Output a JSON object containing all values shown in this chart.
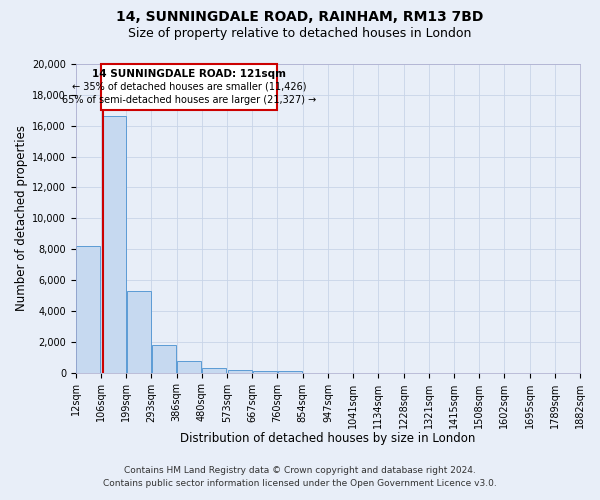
{
  "title": "14, SUNNINGDALE ROAD, RAINHAM, RM13 7BD",
  "subtitle": "Size of property relative to detached houses in London",
  "xlabel": "Distribution of detached houses by size in London",
  "ylabel": "Number of detached properties",
  "annotation_text_line1": "14 SUNNINGDALE ROAD: 121sqm",
  "annotation_text_line2": "← 35% of detached houses are smaller (11,426)",
  "annotation_text_line3": "65% of semi-detached houses are larger (21,327) →",
  "bin_labels": [
    "12sqm",
    "106sqm",
    "199sqm",
    "293sqm",
    "386sqm",
    "480sqm",
    "573sqm",
    "667sqm",
    "760sqm",
    "854sqm",
    "947sqm",
    "1041sqm",
    "1134sqm",
    "1228sqm",
    "1321sqm",
    "1415sqm",
    "1508sqm",
    "1602sqm",
    "1695sqm",
    "1789sqm",
    "1882sqm"
  ],
  "counts": [
    8200,
    16600,
    5300,
    1800,
    750,
    300,
    200,
    100,
    100,
    0,
    0,
    0,
    0,
    0,
    0,
    0,
    0,
    0,
    0,
    0
  ],
  "bar_color": "#c6d9f0",
  "bar_edge_color": "#5b9bd5",
  "vline_color": "#cc0000",
  "vline_bar_index": 1,
  "ylim": [
    0,
    20000
  ],
  "yticks": [
    0,
    2000,
    4000,
    6000,
    8000,
    10000,
    12000,
    14000,
    16000,
    18000,
    20000
  ],
  "grid_color": "#c8d4e8",
  "annotation_box_facecolor": "#ffffff",
  "annotation_box_edgecolor": "#cc0000",
  "background_color": "#e8eef8",
  "plot_background": "#e8eef8",
  "title_fontsize": 10,
  "subtitle_fontsize": 9,
  "axis_label_fontsize": 8.5,
  "tick_fontsize": 7,
  "annot_fontsize_title": 7.5,
  "annot_fontsize_body": 7,
  "footer_fontsize": 6.5,
  "footer_line1": "Contains HM Land Registry data © Crown copyright and database right 2024.",
  "footer_line2": "Contains public sector information licensed under the Open Government Licence v3.0."
}
